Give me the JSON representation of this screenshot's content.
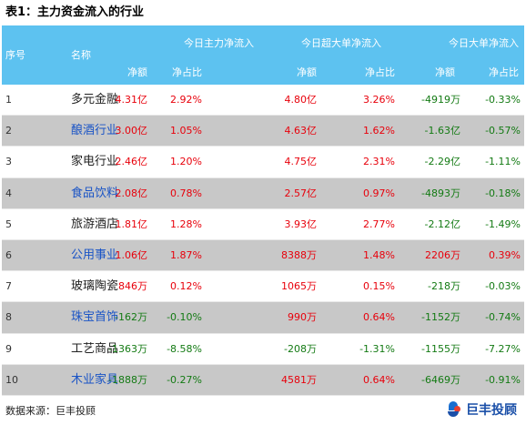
{
  "title": "表1：主力资金流入的行业",
  "header": {
    "idx": "序号",
    "name": "名称",
    "groups": [
      "今日主力净流入",
      "今日超大单净流入",
      "今日大单净流入"
    ],
    "sub": [
      "净额",
      "净占比",
      "净额",
      "净占比",
      "净额",
      "净占比"
    ]
  },
  "rows": [
    {
      "idx": "1",
      "name": "多元金融",
      "v": [
        "4.31亿",
        "2.92%",
        "4.80亿",
        "3.26%",
        "-4919万",
        "-0.33%"
      ]
    },
    {
      "idx": "2",
      "name": "酿酒行业",
      "v": [
        "3.00亿",
        "1.05%",
        "4.63亿",
        "1.62%",
        "-1.63亿",
        "-0.57%"
      ]
    },
    {
      "idx": "3",
      "name": "家电行业",
      "v": [
        "2.46亿",
        "1.20%",
        "4.75亿",
        "2.31%",
        "-2.29亿",
        "-1.11%"
      ]
    },
    {
      "idx": "4",
      "name": "食品饮料",
      "v": [
        "2.08亿",
        "0.78%",
        "2.57亿",
        "0.97%",
        "-4893万",
        "-0.18%"
      ]
    },
    {
      "idx": "5",
      "name": "旅游酒店",
      "v": [
        "1.81亿",
        "1.28%",
        "3.93亿",
        "2.77%",
        "-2.12亿",
        "-1.49%"
      ]
    },
    {
      "idx": "6",
      "name": "公用事业",
      "v": [
        "1.06亿",
        "1.87%",
        "8388万",
        "1.48%",
        "2206万",
        "0.39%"
      ]
    },
    {
      "idx": "7",
      "name": "玻璃陶瓷",
      "v": [
        "846万",
        "0.12%",
        "1065万",
        "0.15%",
        "-218万",
        "-0.03%"
      ]
    },
    {
      "idx": "8",
      "name": "珠宝首饰",
      "v": [
        "-162万",
        "-0.10%",
        "990万",
        "0.64%",
        "-1152万",
        "-0.74%"
      ]
    },
    {
      "idx": "9",
      "name": "工艺商品",
      "v": [
        "-1363万",
        "-8.58%",
        "-208万",
        "-1.31%",
        "-1155万",
        "-7.27%"
      ]
    },
    {
      "idx": "10",
      "name": "木业家具",
      "v": [
        "-1888万",
        "-0.27%",
        "4581万",
        "0.64%",
        "-6469万",
        "-0.91%"
      ]
    }
  ],
  "footer": "数据来源：巨丰投顾",
  "logo_text": "巨丰投顾",
  "colors": {
    "header_bg": "#5dc2f0",
    "positive": "#e8000b",
    "negative": "#137a13",
    "alt_row": "#c8c8c8",
    "alt_name": "#1a54c6"
  }
}
